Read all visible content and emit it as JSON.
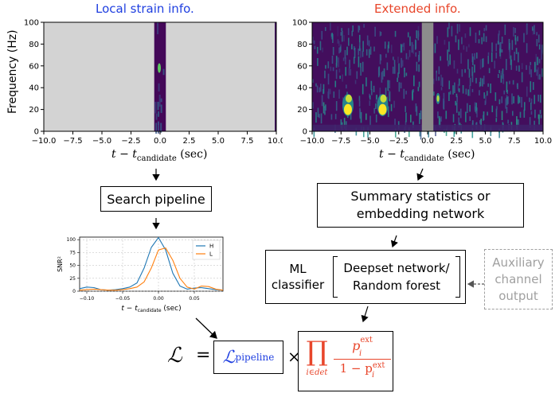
{
  "headers": {
    "left": "Local strain info.",
    "right": "Extended info.",
    "left_color": "#1f3fe0",
    "right_color": "#e8462b"
  },
  "spectrogram_axes": {
    "ylabel": "Frequency (Hz)",
    "xlabel_main": "t − t",
    "xlabel_sub": "candidate",
    "xlabel_unit": "(sec)"
  },
  "chart_data": [
    {
      "type": "heatmap",
      "panel": "local-strain",
      "x_range": [
        -10,
        10
      ],
      "y_range": [
        0,
        100
      ],
      "x_ticks": [
        "−10.0",
        "−7.5",
        "−5.0",
        "−2.5",
        "0.0",
        "2.5",
        "5.0",
        "7.5",
        "10.0"
      ],
      "y_ticks": [
        "0",
        "20",
        "40",
        "60",
        "80",
        "100"
      ],
      "masked_color": "#d3d3d3",
      "unmasked_window": [
        -0.5,
        0.5
      ],
      "features": [
        {
          "t": 0.0,
          "f": 58,
          "label": ""
        }
      ]
    },
    {
      "type": "heatmap",
      "panel": "extended",
      "x_range": [
        -10,
        10
      ],
      "y_range": [
        0,
        100
      ],
      "x_ticks": [
        "−10.0",
        "−7.5",
        "−5.0",
        "−2.5",
        "0.0",
        "2.5",
        "5.0",
        "7.5",
        "10.0"
      ],
      "y_ticks": [
        "0",
        "20",
        "40",
        "60",
        "80",
        "100"
      ],
      "masked_window": [
        -0.5,
        0.5
      ],
      "masked_color": "#8c8c8c",
      "features": [
        {
          "t": -6.9,
          "f": 24
        },
        {
          "t": -3.9,
          "f": 24
        },
        {
          "t": 0.9,
          "f": 30
        }
      ]
    },
    {
      "type": "line",
      "panel": "snr",
      "xlabel_main": "t − t",
      "xlabel_sub": "candidate",
      "xlabel_unit": "(sec)",
      "ylabel": "SNR²",
      "x_range": [
        -0.11,
        0.09
      ],
      "y_range": [
        0,
        105
      ],
      "x_ticks": [
        "−0.10",
        "−0.05",
        "0.00",
        "0.05"
      ],
      "y_ticks": [
        "0",
        "25",
        "50",
        "75",
        "100"
      ],
      "legend_position": "top-right",
      "series": [
        {
          "name": "H",
          "color": "#1f77b4",
          "x": [
            -0.11,
            -0.1,
            -0.09,
            -0.08,
            -0.07,
            -0.06,
            -0.05,
            -0.04,
            -0.03,
            -0.02,
            -0.01,
            0.0,
            0.01,
            0.02,
            0.03,
            0.04,
            0.05,
            0.06,
            0.07,
            0.08,
            0.09
          ],
          "y": [
            5,
            8,
            7,
            3,
            2,
            3,
            5,
            8,
            16,
            45,
            85,
            104,
            80,
            35,
            10,
            4,
            6,
            7,
            5,
            3,
            2
          ]
        },
        {
          "name": "L",
          "color": "#ff7f0e",
          "x": [
            -0.11,
            -0.1,
            -0.09,
            -0.08,
            -0.07,
            -0.06,
            -0.05,
            -0.04,
            -0.03,
            -0.02,
            -0.01,
            0.0,
            0.01,
            0.02,
            0.03,
            0.04,
            0.05,
            0.06,
            0.07,
            0.08,
            0.09
          ],
          "y": [
            2,
            3,
            4,
            3,
            2,
            2,
            3,
            5,
            8,
            18,
            45,
            80,
            84,
            60,
            25,
            8,
            4,
            10,
            9,
            4,
            2
          ]
        }
      ]
    }
  ],
  "boxes": {
    "search_pipeline": "Search pipeline",
    "summary_line1": "Summary statistics or",
    "summary_line2": "embedding network",
    "ml_line1": "ML",
    "ml_line2": "classifier",
    "deepset_line1": "Deepset network/",
    "deepset_line2": "Random forest",
    "aux_line1": "Auxiliary",
    "aux_line2": "channel",
    "aux_line3": "output",
    "aux_color": "#a0a0a0"
  },
  "formula": {
    "L_symbol": "ℒ",
    "equals": "=",
    "pipeline_sub": "pipeline",
    "times": "×",
    "prod": "∏",
    "prod_sub": "i∈det",
    "num_p": "p",
    "num_sub": "i",
    "num_sup": "ext",
    "den_prefix": "1 − p",
    "blue": "#1f3fe0",
    "red": "#e8462b"
  }
}
